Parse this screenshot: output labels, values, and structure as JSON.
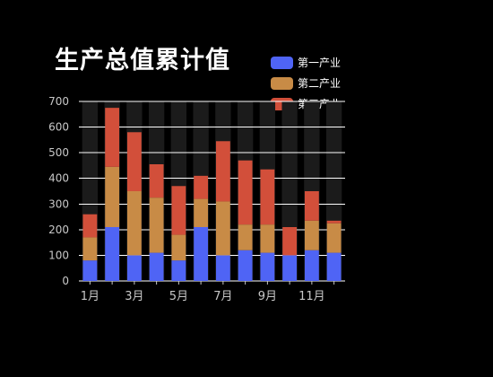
{
  "chart_data": {
    "type": "bar",
    "stacked": true,
    "title": "生产总值累计值",
    "categories": [
      "1月",
      "2月",
      "3月",
      "4月",
      "5月",
      "6月",
      "7月",
      "8月",
      "9月",
      "10月",
      "11月",
      "12月"
    ],
    "x_tick_labels": [
      "1月",
      "3月",
      "5月",
      "7月",
      "9月",
      "11月"
    ],
    "series": [
      {
        "name": "第一产业",
        "color": "#4f64f5",
        "values": [
          80,
          210,
          100,
          110,
          80,
          210,
          100,
          120,
          110,
          100,
          120,
          110
        ]
      },
      {
        "name": "第二产业",
        "color": "#c88b46",
        "values": [
          90,
          235,
          250,
          215,
          100,
          110,
          210,
          100,
          110,
          0,
          115,
          115
        ]
      },
      {
        "name": "第三产业",
        "color": "#d24f3a",
        "values": [
          90,
          230,
          230,
          130,
          190,
          90,
          235,
          250,
          215,
          110,
          115,
          10
        ]
      }
    ],
    "ylim": [
      0,
      700
    ],
    "y_ticks": [
      0,
      100,
      200,
      300,
      400,
      500,
      600,
      700
    ],
    "grid": true,
    "legend_position": "top-right"
  },
  "colors": {
    "background": "#000000",
    "column_band": "#1b1b1b",
    "grid": "#ffffff",
    "axis_text": "#c8c8c8",
    "title": "#ffffff"
  }
}
